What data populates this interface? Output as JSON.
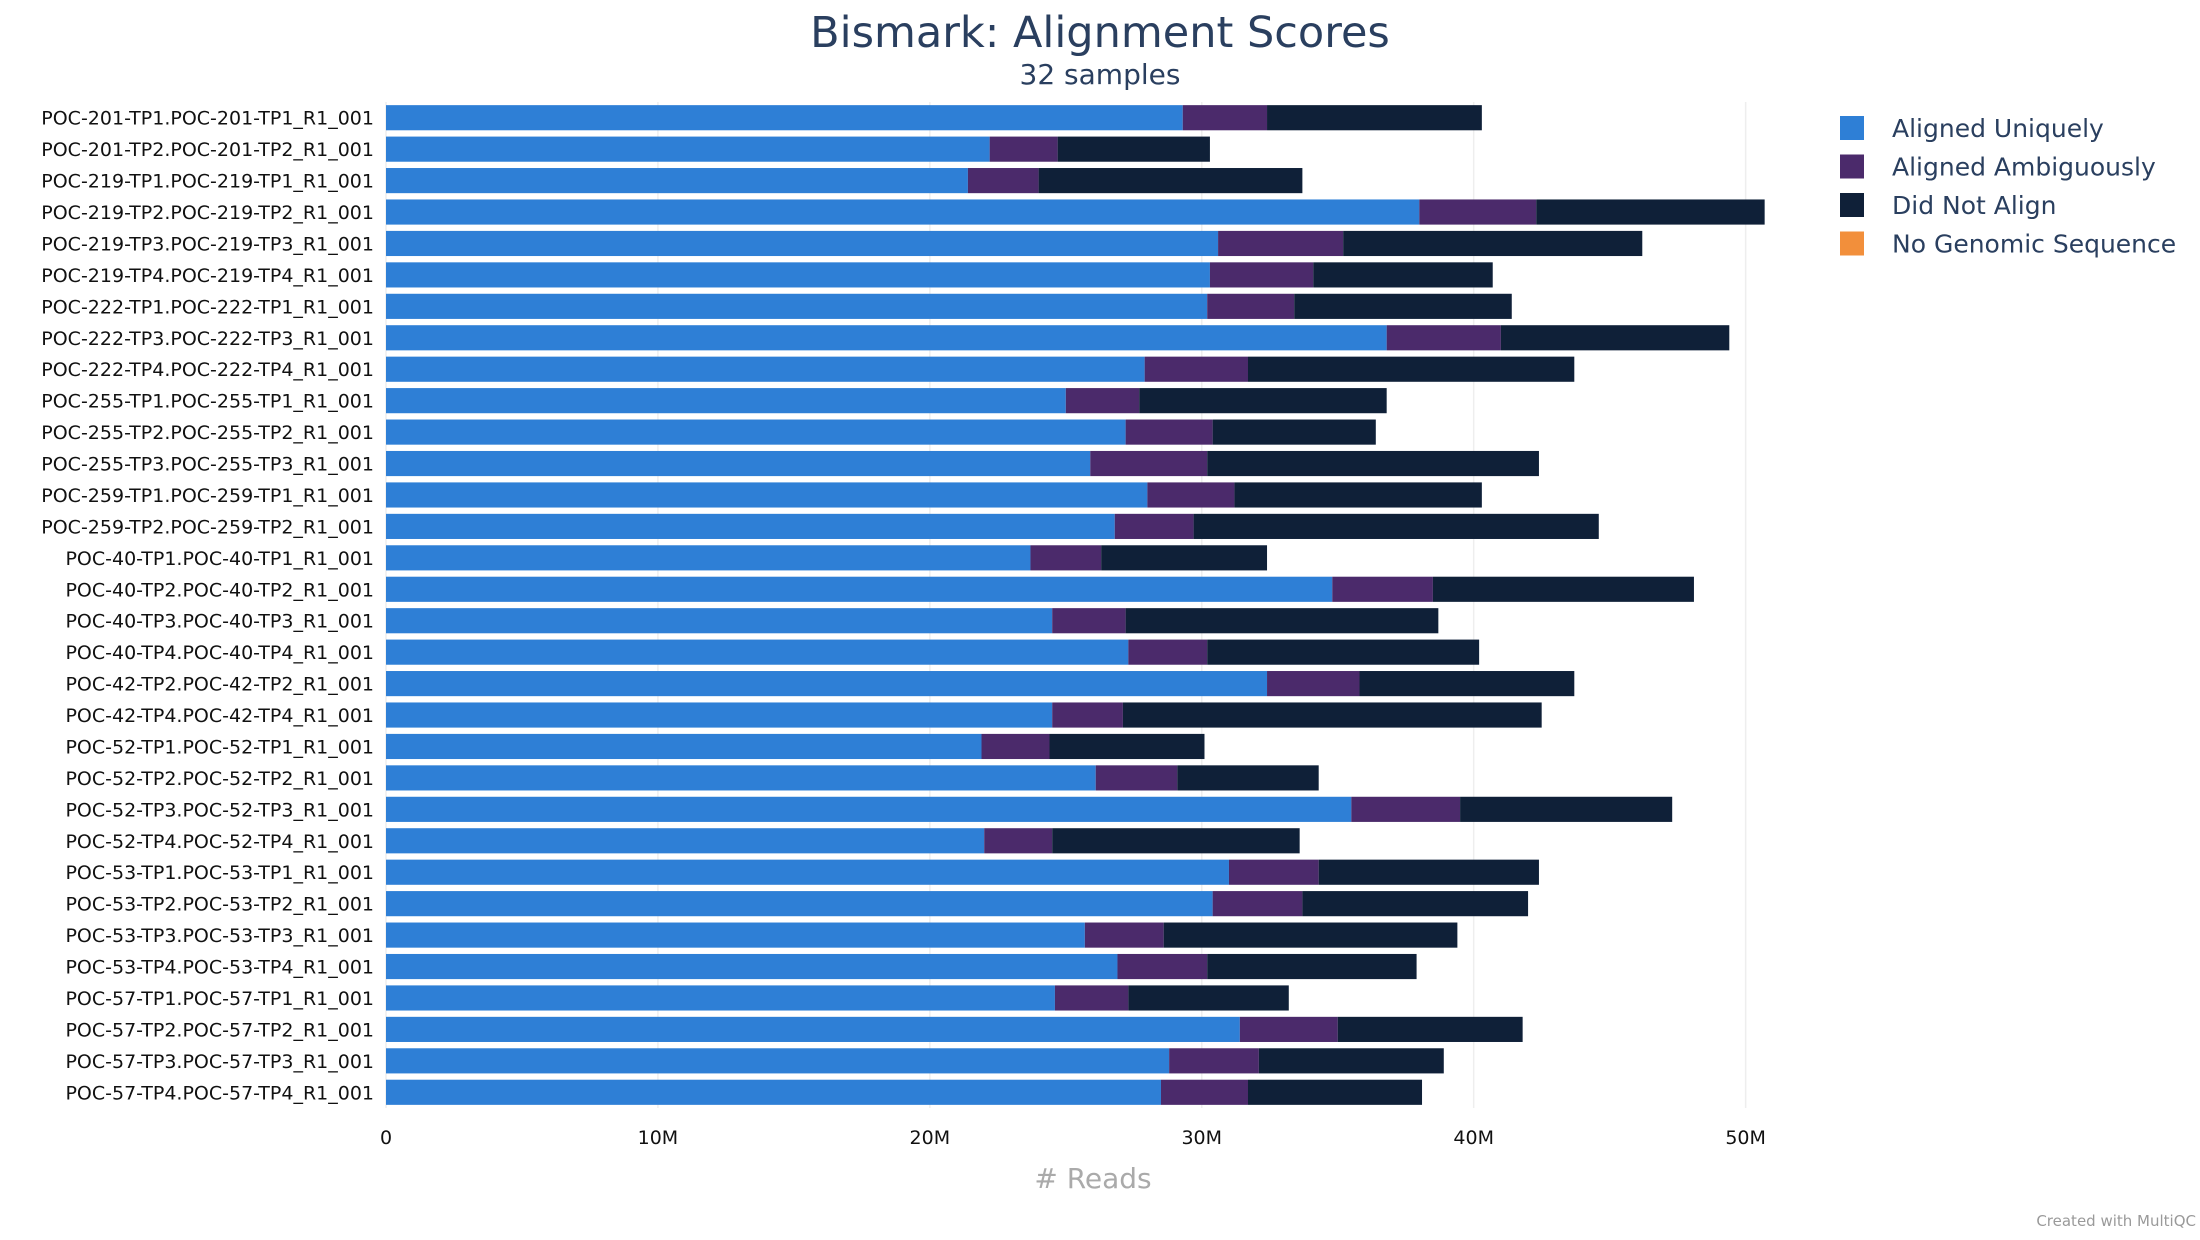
{
  "chart_data": {
    "type": "bar",
    "orientation": "horizontal",
    "stacked": true,
    "title": "Bismark: Alignment Scores",
    "subtitle": "32 samples",
    "xlabel": "# Reads",
    "xlim": [
      0,
      52000000
    ],
    "xticks": [
      0,
      10000000,
      20000000,
      30000000,
      40000000,
      50000000
    ],
    "xtick_labels": [
      "0",
      "10M",
      "20M",
      "30M",
      "40M",
      "50M"
    ],
    "grid": true,
    "legend_position": "top-right",
    "credit": "Created with MultiQC",
    "categories": [
      "POC-201-TP1.POC-201-TP1_R1_001",
      "POC-201-TP2.POC-201-TP2_R1_001",
      "POC-219-TP1.POC-219-TP1_R1_001",
      "POC-219-TP2.POC-219-TP2_R1_001",
      "POC-219-TP3.POC-219-TP3_R1_001",
      "POC-219-TP4.POC-219-TP4_R1_001",
      "POC-222-TP1.POC-222-TP1_R1_001",
      "POC-222-TP3.POC-222-TP3_R1_001",
      "POC-222-TP4.POC-222-TP4_R1_001",
      "POC-255-TP1.POC-255-TP1_R1_001",
      "POC-255-TP2.POC-255-TP2_R1_001",
      "POC-255-TP3.POC-255-TP3_R1_001",
      "POC-259-TP1.POC-259-TP1_R1_001",
      "POC-259-TP2.POC-259-TP2_R1_001",
      "POC-40-TP1.POC-40-TP1_R1_001",
      "POC-40-TP2.POC-40-TP2_R1_001",
      "POC-40-TP3.POC-40-TP3_R1_001",
      "POC-40-TP4.POC-40-TP4_R1_001",
      "POC-42-TP2.POC-42-TP2_R1_001",
      "POC-42-TP4.POC-42-TP4_R1_001",
      "POC-52-TP1.POC-52-TP1_R1_001",
      "POC-52-TP2.POC-52-TP2_R1_001",
      "POC-52-TP3.POC-52-TP3_R1_001",
      "POC-52-TP4.POC-52-TP4_R1_001",
      "POC-53-TP1.POC-53-TP1_R1_001",
      "POC-53-TP2.POC-53-TP2_R1_001",
      "POC-53-TP3.POC-53-TP3_R1_001",
      "POC-53-TP4.POC-53-TP4_R1_001",
      "POC-57-TP1.POC-57-TP1_R1_001",
      "POC-57-TP2.POC-57-TP2_R1_001",
      "POC-57-TP3.POC-57-TP3_R1_001",
      "POC-57-TP4.POC-57-TP4_R1_001"
    ],
    "series": [
      {
        "name": "Aligned Uniquely",
        "color": "#2e7fd6",
        "values": [
          29300000,
          22200000,
          21400000,
          38000000,
          30600000,
          30300000,
          30200000,
          36800000,
          27900000,
          25000000,
          27200000,
          25900000,
          28000000,
          26800000,
          23700000,
          34800000,
          24500000,
          27300000,
          32400000,
          24500000,
          21900000,
          26100000,
          35500000,
          22000000,
          31000000,
          30400000,
          25700000,
          26900000,
          24600000,
          31400000,
          28800000,
          28500000
        ]
      },
      {
        "name": "Aligned Ambiguously",
        "color": "#4b2a6b",
        "values": [
          3100000,
          2500000,
          2600000,
          4300000,
          4600000,
          3800000,
          3200000,
          4200000,
          3800000,
          2700000,
          3200000,
          4300000,
          3200000,
          2900000,
          2600000,
          3700000,
          2700000,
          2900000,
          3400000,
          2600000,
          2500000,
          3000000,
          4000000,
          2500000,
          3300000,
          3300000,
          2900000,
          3300000,
          2700000,
          3600000,
          3300000,
          3200000
        ]
      },
      {
        "name": "Did Not Align",
        "color": "#0f2038",
        "values": [
          7900000,
          5600000,
          9700000,
          8400000,
          11000000,
          6600000,
          8000000,
          8400000,
          12000000,
          9100000,
          6000000,
          12200000,
          9100000,
          14900000,
          6100000,
          9600000,
          11500000,
          10000000,
          7900000,
          15400000,
          5700000,
          5200000,
          7800000,
          9100000,
          8100000,
          8300000,
          10800000,
          7700000,
          5900000,
          6800000,
          6800000,
          6400000
        ]
      },
      {
        "name": "No Genomic Sequence",
        "color": "#f28f3b",
        "values": [
          0,
          0,
          0,
          0,
          0,
          0,
          0,
          0,
          0,
          0,
          0,
          0,
          0,
          0,
          0,
          0,
          0,
          0,
          0,
          0,
          0,
          0,
          0,
          0,
          0,
          0,
          0,
          0,
          0,
          0,
          0,
          0
        ]
      }
    ]
  }
}
